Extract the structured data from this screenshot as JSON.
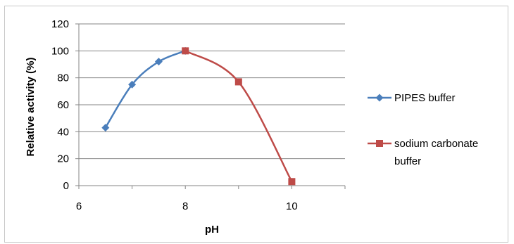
{
  "chart_data": {
    "type": "line",
    "title": "",
    "xlabel": "pH",
    "ylabel": "Relative activity (%)",
    "xlim": [
      6,
      11
    ],
    "ylim": [
      0,
      120
    ],
    "xticks": [
      6,
      8,
      10
    ],
    "yticks": [
      0,
      20,
      40,
      60,
      80,
      100,
      120
    ],
    "grid": "horizontal",
    "legend_position": "right",
    "smooth": true,
    "series": [
      {
        "name": "PIPES buffer",
        "color": "#4a7ebb",
        "marker": "diamond",
        "x": [
          6.5,
          7.0,
          7.5,
          8.0
        ],
        "y": [
          43,
          75,
          92,
          100
        ]
      },
      {
        "name": "sodium carbonate buffer",
        "color": "#be4b48",
        "marker": "square",
        "x": [
          8.0,
          9.0,
          10.0
        ],
        "y": [
          100,
          77,
          3
        ]
      }
    ]
  }
}
